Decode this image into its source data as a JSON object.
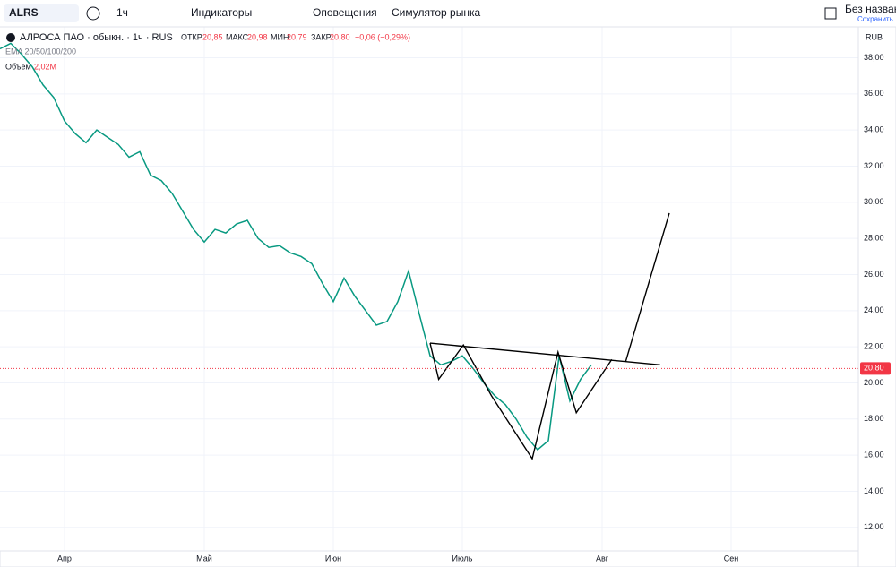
{
  "toolbar": {
    "symbol": "ALRS",
    "interval": "1ч",
    "indicators": "Индикаторы",
    "alerts": "Оповещения",
    "replay": "Симулятор рынка",
    "layout_name": "Без названия",
    "save": "Сохранить"
  },
  "legend": {
    "name": "АЛРОСА ПАО · обыкн. · 1ч · RUS",
    "open_label": "ОТКР",
    "open": "20,85",
    "high_label": "МАКС",
    "high": "20,98",
    "low_label": "МИН",
    "low": "20,79",
    "close_label": "ЗАКР",
    "close": "20,80",
    "change": "−0,06 (−0,29%)",
    "ema": "EMA 20/50/100/200",
    "volume_label": "Объем",
    "volume": "2,02M"
  },
  "chart_data": {
    "type": "line",
    "currency": "RUB",
    "color": "#089981",
    "categories": [
      null,
      null,
      null,
      null,
      null,
      null,
      "Апр",
      null,
      null,
      null,
      null,
      null,
      null,
      null,
      null,
      null,
      null,
      null,
      null,
      "Май",
      null,
      null,
      null,
      null,
      null,
      null,
      null,
      null,
      null,
      null,
      null,
      "Июн",
      null,
      null,
      null,
      null,
      null,
      null,
      null,
      null,
      null,
      null,
      null,
      "Июль",
      null,
      null,
      null,
      null,
      null,
      null,
      null,
      null,
      null,
      null,
      null,
      null,
      "Авг",
      null,
      null,
      null,
      null,
      null,
      null,
      null,
      null,
      null,
      null,
      null,
      "Сен",
      null,
      null,
      null,
      null,
      null,
      null,
      null,
      null,
      null,
      null,
      null,
      null
    ],
    "values": [
      38.5,
      38.8,
      38.2,
      37.5,
      36.5,
      35.8,
      34.5,
      33.8,
      33.3,
      34,
      33.6,
      33.2,
      32.5,
      32.8,
      31.5,
      31.2,
      30.5,
      29.5,
      28.5,
      27.8,
      28.5,
      28.3,
      28.8,
      29,
      28,
      27.5,
      27.6,
      27.2,
      27,
      26.6,
      25.5,
      24.5,
      25.8,
      24.8,
      24,
      23.2,
      23.4,
      24.5,
      26.2,
      23.8,
      21.5,
      21,
      21.2,
      21.5,
      20.8,
      20,
      19.3,
      18.8,
      18,
      17,
      16.3,
      16.8,
      21.5,
      19,
      20.2,
      21,
      null,
      null,
      null,
      null,
      null,
      null,
      null,
      null,
      null,
      null,
      null,
      null,
      null,
      null,
      null,
      null,
      null,
      null,
      null,
      null,
      null,
      null,
      null,
      null,
      null
    ],
    "ylim": [
      10.7,
      41.2
    ],
    "yticks": [
      {
        "value": 12,
        "label": "12,00"
      },
      {
        "value": 14,
        "label": "14,00"
      },
      {
        "value": 16,
        "label": "16,00"
      },
      {
        "value": 18,
        "label": "18,00"
      },
      {
        "value": 20,
        "label": "20,00"
      },
      {
        "value": 22,
        "label": "22,00"
      },
      {
        "value": 24,
        "label": "24,00"
      },
      {
        "value": 26,
        "label": "26,00"
      },
      {
        "value": 28,
        "label": "28,00"
      },
      {
        "value": 30,
        "label": "30,00"
      },
      {
        "value": 32,
        "label": "32,00"
      },
      {
        "value": 34,
        "label": "34,00"
      },
      {
        "value": 36,
        "label": "36,00"
      },
      {
        "value": 38,
        "label": "38,00"
      }
    ],
    "last_price": {
      "value": 20.8,
      "label": "20,80"
    },
    "drawings": [
      {
        "x": [
          40,
          40.8,
          43.1,
          45.7,
          49.5,
          51.9,
          53.6,
          56.9
        ],
        "y": [
          22.2,
          20.2,
          22.1,
          19.3,
          15.8,
          21.7,
          18.35,
          21.3
        ]
      },
      {
        "x": [
          40,
          61.4
        ],
        "y": [
          22.2,
          21
        ]
      },
      {
        "x": [
          58.2,
          62.25
        ],
        "y": [
          21.2,
          29.4
        ]
      }
    ]
  }
}
